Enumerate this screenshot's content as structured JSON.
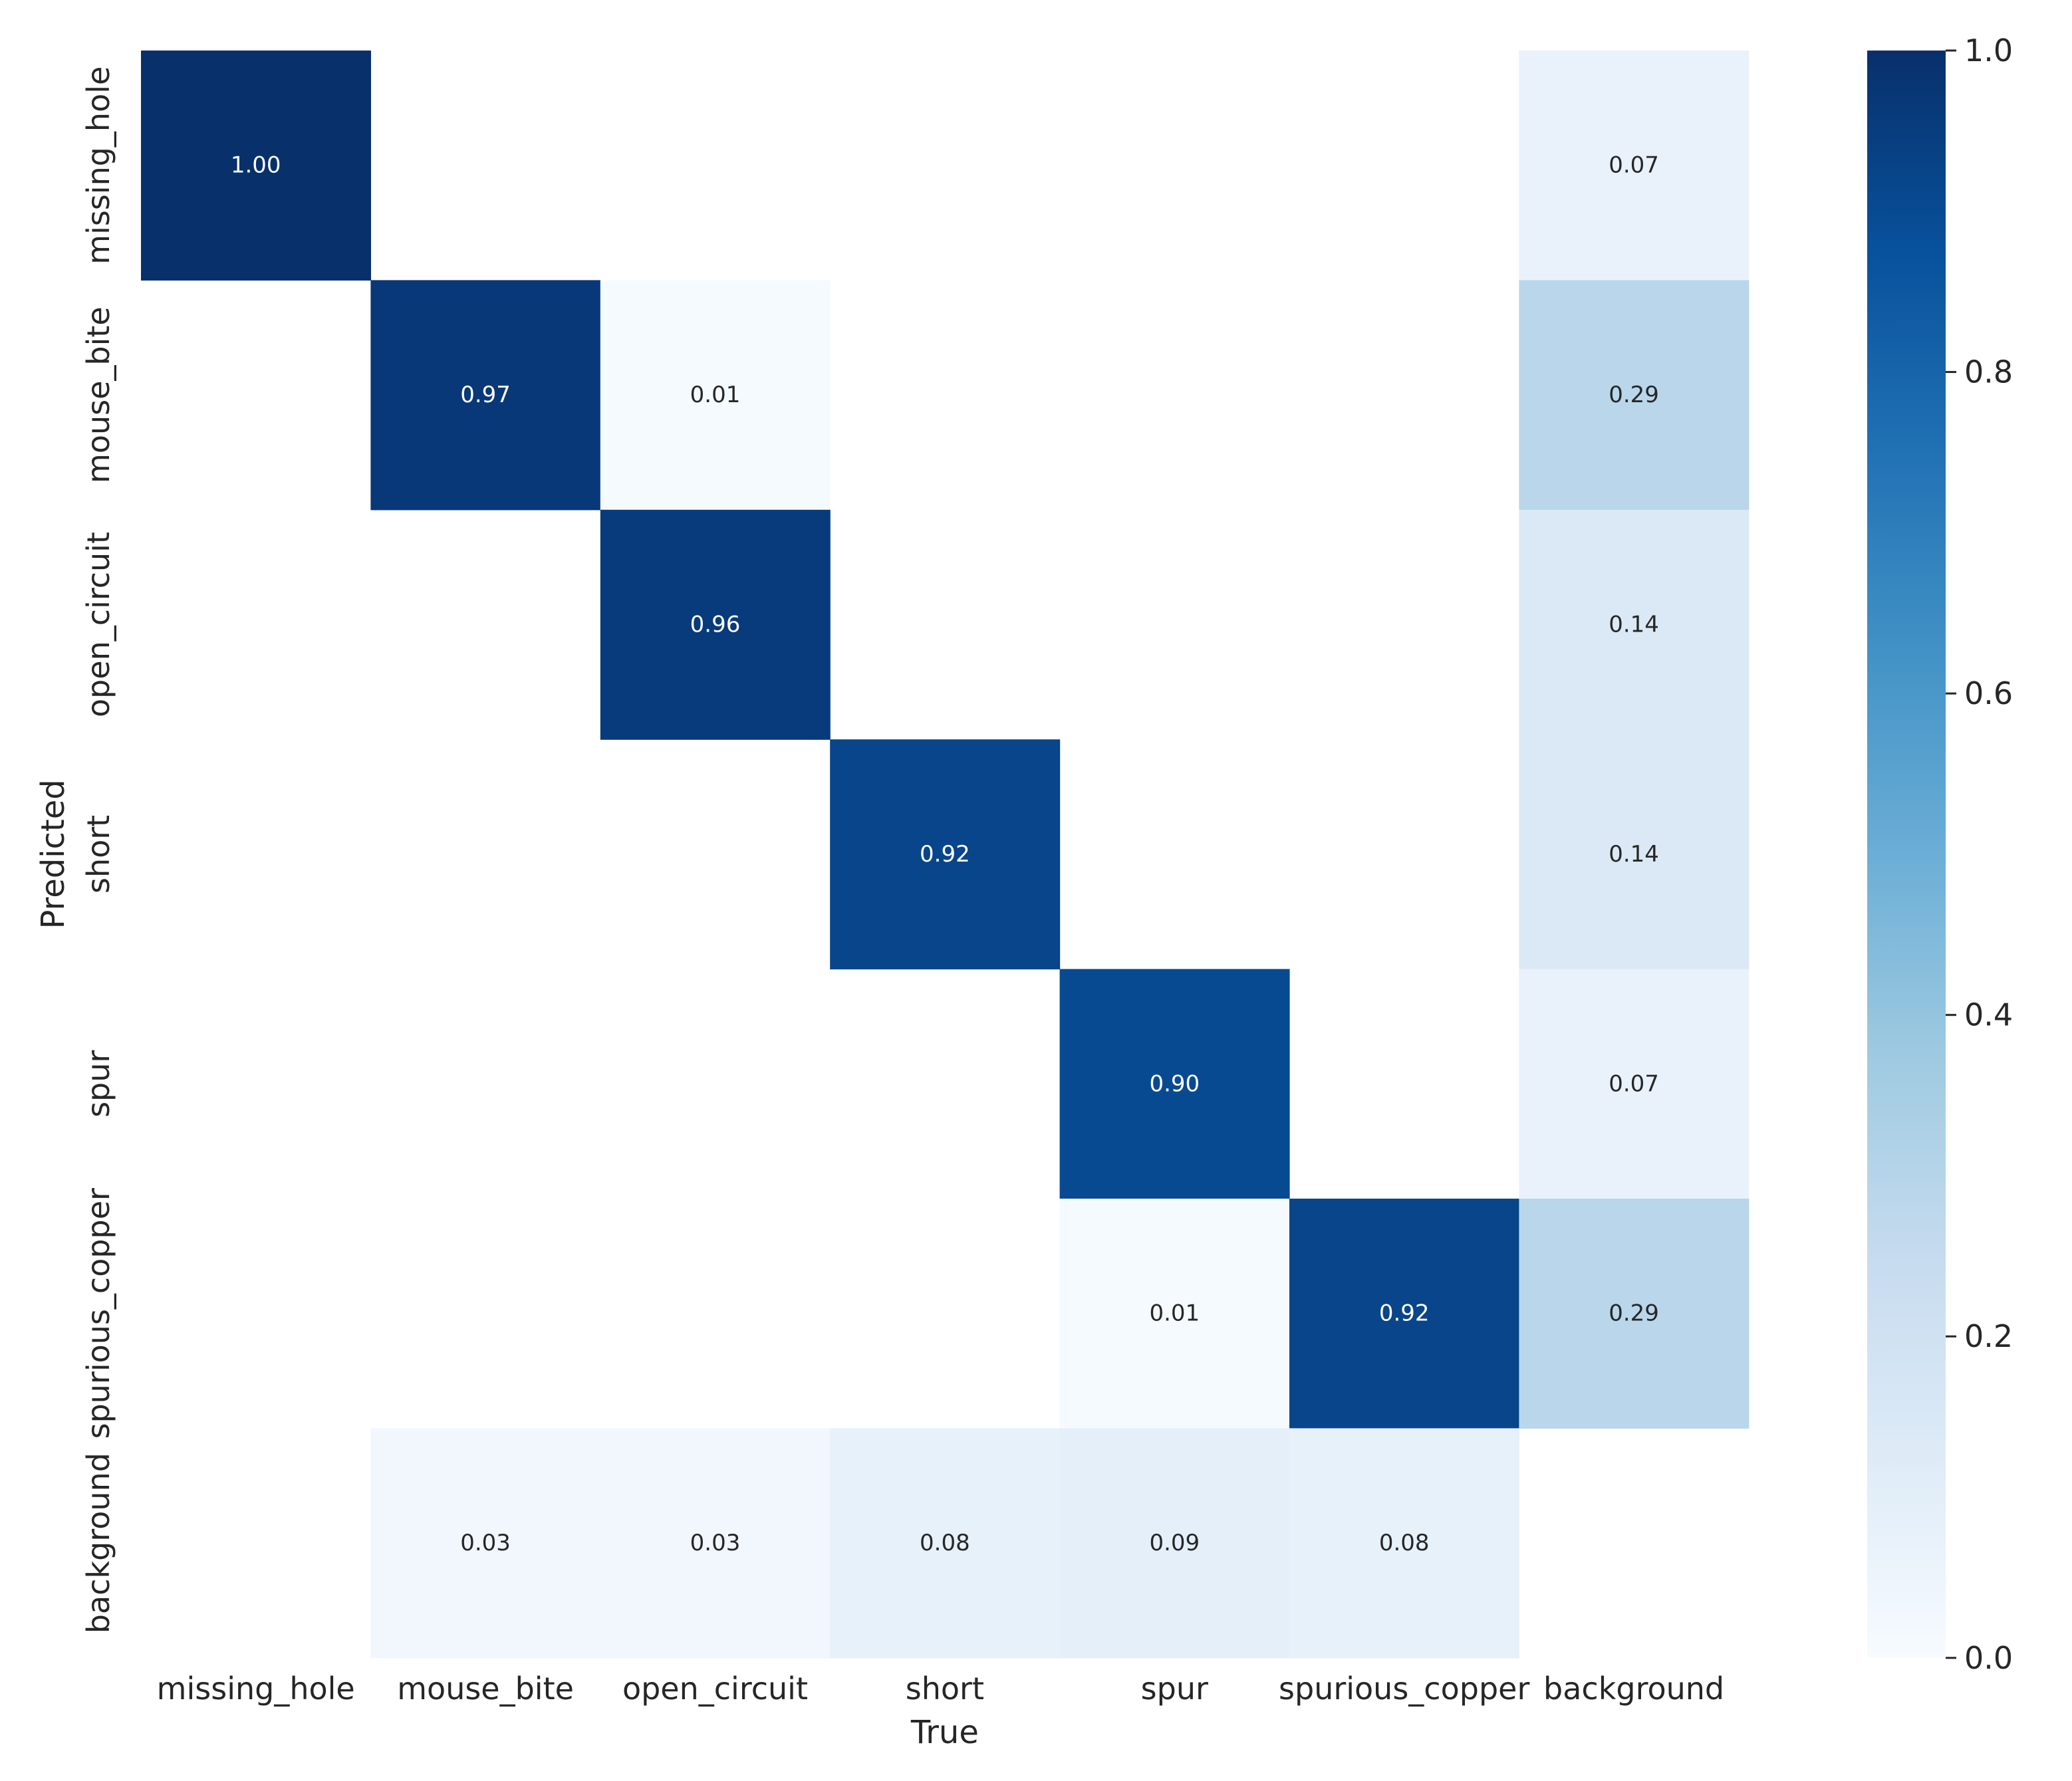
{
  "chart_data": {
    "type": "heatmap",
    "title": "",
    "xlabel": "True",
    "ylabel": "Predicted",
    "x_categories": [
      "missing_hole",
      "mouse_bite",
      "open_circuit",
      "short",
      "spur",
      "spurious_copper",
      "background"
    ],
    "y_categories": [
      "missing_hole",
      "mouse_bite",
      "open_circuit",
      "short",
      "spur",
      "spurious_copper",
      "background"
    ],
    "values": [
      [
        1.0,
        null,
        null,
        null,
        null,
        null,
        0.07
      ],
      [
        null,
        0.97,
        0.01,
        null,
        null,
        null,
        0.29
      ],
      [
        null,
        null,
        0.96,
        null,
        null,
        null,
        0.14
      ],
      [
        null,
        null,
        null,
        0.92,
        null,
        null,
        0.14
      ],
      [
        null,
        null,
        null,
        null,
        0.9,
        null,
        0.07
      ],
      [
        null,
        null,
        null,
        null,
        0.01,
        0.92,
        0.29
      ],
      [
        null,
        0.03,
        0.03,
        0.08,
        0.09,
        0.08,
        null
      ]
    ],
    "value_format": "0.00",
    "colormap": "Blues",
    "colormap_stops": [
      "#f7fbff",
      "#deebf7",
      "#c6dbef",
      "#9ecae1",
      "#6baed6",
      "#4292c6",
      "#2171b5",
      "#08519c",
      "#08306b"
    ],
    "vmin": 0.0,
    "vmax": 1.0,
    "colorbar": {
      "ticks": [
        0.0,
        0.2,
        0.4,
        0.6,
        0.8,
        1.0
      ],
      "tick_labels": [
        "0.0",
        "0.2",
        "0.4",
        "0.6",
        "0.8",
        "1.0"
      ],
      "placement": "right"
    },
    "grid": false,
    "text_color_dark": "#262626",
    "text_color_light": "#ffffff"
  }
}
